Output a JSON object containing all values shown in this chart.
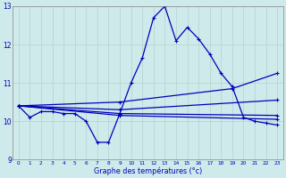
{
  "xlabel": "Graphe des températures (°c)",
  "bg_color": "#ceeaea",
  "grid_color": "#b8d4d4",
  "line_color": "#0000bb",
  "xlim": [
    -0.5,
    23.5
  ],
  "ylim": [
    9.0,
    13.0
  ],
  "yticks": [
    9,
    10,
    11,
    12,
    13
  ],
  "xticks": [
    0,
    1,
    2,
    3,
    4,
    5,
    6,
    7,
    8,
    9,
    10,
    11,
    12,
    13,
    14,
    15,
    16,
    17,
    18,
    19,
    20,
    21,
    22,
    23
  ],
  "line_main_x": [
    0,
    1,
    2,
    3,
    4,
    5,
    6,
    7,
    8,
    9,
    10,
    11,
    12,
    13,
    14,
    15,
    16,
    17,
    18,
    19,
    20,
    21,
    22,
    23
  ],
  "line_main_y": [
    10.4,
    10.1,
    10.25,
    10.25,
    10.2,
    10.2,
    10.0,
    9.45,
    9.45,
    10.2,
    11.0,
    11.65,
    12.7,
    13.0,
    12.1,
    12.45,
    12.15,
    11.75,
    11.25,
    10.9,
    10.1,
    10.0,
    9.95,
    9.9
  ],
  "fan_lines": [
    {
      "x": [
        0,
        9,
        23
      ],
      "y": [
        10.4,
        10.15,
        10.05
      ]
    },
    {
      "x": [
        0,
        9,
        23
      ],
      "y": [
        10.4,
        10.2,
        10.15
      ]
    },
    {
      "x": [
        0,
        9,
        23
      ],
      "y": [
        10.4,
        10.3,
        10.55
      ]
    },
    {
      "x": [
        0,
        9,
        19,
        23
      ],
      "y": [
        10.4,
        10.5,
        10.85,
        11.25
      ]
    }
  ]
}
